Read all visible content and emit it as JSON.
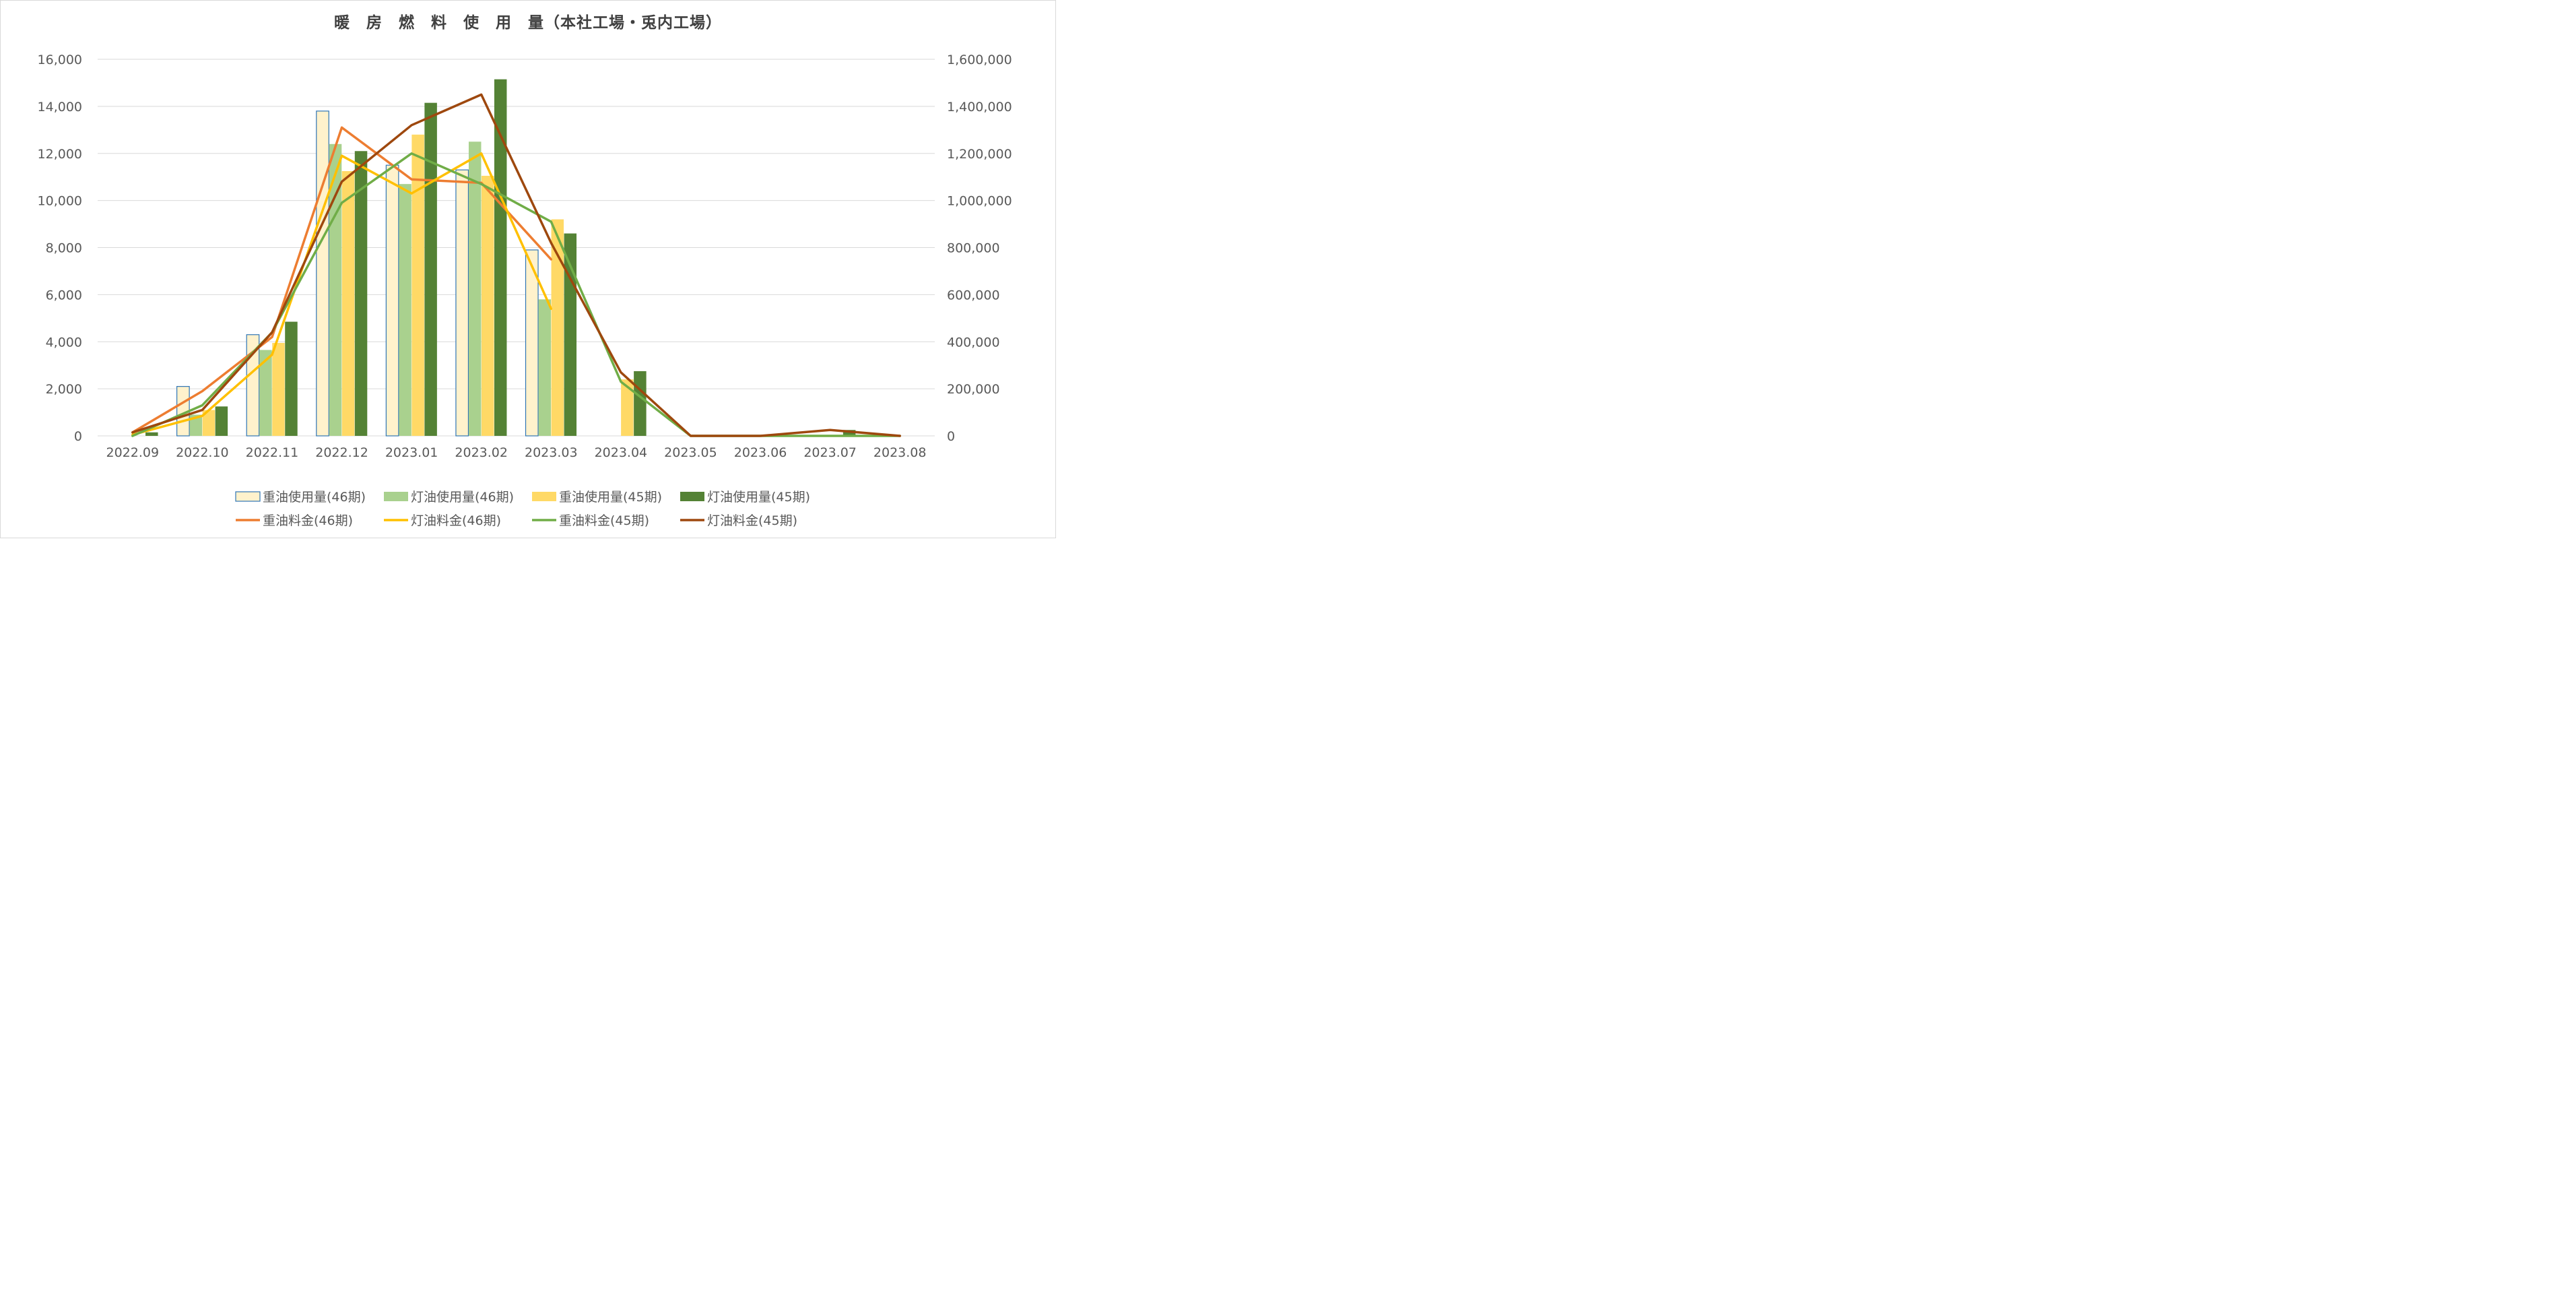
{
  "chart_data": {
    "type": "bar",
    "title": "暖　房　燃　料　使　用　量（本社工場・兎内工場）",
    "categories": [
      "2022.09",
      "2022.10",
      "2022.11",
      "2022.12",
      "2023.01",
      "2023.02",
      "2023.03",
      "2023.04",
      "2023.05",
      "2023.06",
      "2023.07",
      "2023.08"
    ],
    "y_left": {
      "min": 0,
      "max": 16000,
      "step": 2000,
      "tick_labels": [
        "0",
        "2,000",
        "4,000",
        "6,000",
        "8,000",
        "10,000",
        "12,000",
        "14,000",
        "16,000"
      ]
    },
    "y_right": {
      "min": 0,
      "max": 1600000,
      "step": 200000,
      "tick_labels": [
        "0",
        "200,000",
        "400,000",
        "600,000",
        "800,000",
        "1,000,000",
        "1,200,000",
        "1,400,000",
        "1,600,000"
      ]
    },
    "grid": true,
    "legend_position": "bottom",
    "bar_series": [
      {
        "name": "重油使用量(46期)",
        "color": "#FFF2CC",
        "border": "#2E75B6",
        "values": [
          0,
          2100,
          4300,
          13800,
          11500,
          11300,
          7900,
          null,
          null,
          null,
          null,
          null
        ]
      },
      {
        "name": "灯油使用量(46期)",
        "color": "#A9D18E",
        "values": [
          0,
          900,
          3650,
          12400,
          10700,
          12500,
          5800,
          null,
          null,
          null,
          null,
          null
        ]
      },
      {
        "name": "重油使用量(45期)",
        "color": "#FFD966",
        "values": [
          0,
          1100,
          3950,
          11250,
          12800,
          11050,
          9200,
          2400,
          0,
          0,
          0,
          0
        ]
      },
      {
        "name": "灯油使用量(45期)",
        "color": "#548235",
        "values": [
          150,
          1250,
          4850,
          12100,
          14150,
          15150,
          8600,
          2750,
          0,
          0,
          250,
          0
        ]
      }
    ],
    "line_series": [
      {
        "name": "重油料金(46期)",
        "color": "#ED7D31",
        "values": [
          15000,
          190000,
          420000,
          1310000,
          1090000,
          1075000,
          750000,
          null,
          null,
          null,
          null,
          null
        ]
      },
      {
        "name": "灯油料金(46期)",
        "color": "#FFC000",
        "values": [
          5000,
          85000,
          345000,
          1190000,
          1030000,
          1200000,
          540000,
          null,
          null,
          null,
          null,
          null
        ]
      },
      {
        "name": "重油料金(45期)",
        "color": "#70AD47",
        "values": [
          0,
          130000,
          440000,
          990000,
          1200000,
          1070000,
          910000,
          230000,
          0,
          0,
          0,
          0
        ]
      },
      {
        "name": "灯油料金(45期)",
        "color": "#9E480E",
        "values": [
          15000,
          110000,
          440000,
          1080000,
          1320000,
          1450000,
          820000,
          270000,
          0,
          0,
          25000,
          0
        ]
      }
    ]
  }
}
